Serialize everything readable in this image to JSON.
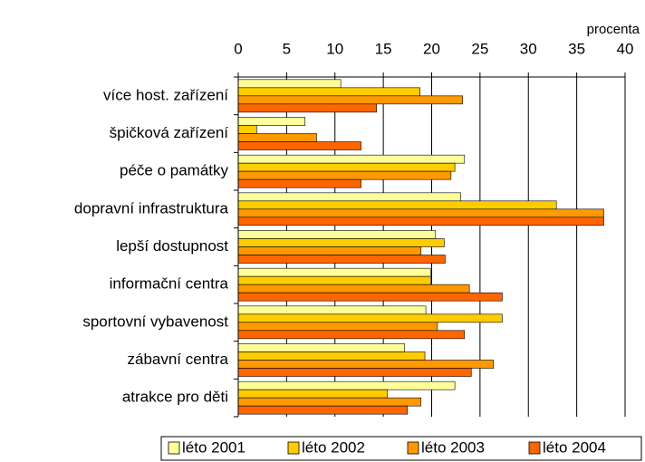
{
  "chart_data": {
    "type": "barh",
    "x_label": "procenta",
    "categories": [
      "více host. zařízení",
      "špičková zařízení",
      "péče o památky",
      "dopravní infrastruktura",
      "lepší dostupnost",
      "informační centra",
      "sportovní vybavenost",
      "zábavní centra",
      "atrakce pro děti"
    ],
    "series": [
      {
        "name": "léto 2001",
        "color": "#ffff99",
        "values": [
          10.6,
          6.9,
          23.4,
          23.0,
          20.4,
          19.9,
          19.4,
          17.2,
          22.4
        ]
      },
      {
        "name": "léto 2002",
        "color": "#ffcc00",
        "values": [
          18.8,
          1.9,
          22.4,
          32.9,
          21.3,
          19.9,
          27.3,
          19.3,
          15.4
        ]
      },
      {
        "name": "léto 2003",
        "color": "#ff9900",
        "values": [
          23.2,
          8.1,
          22.0,
          37.8,
          18.9,
          23.9,
          20.6,
          26.4,
          18.9
        ]
      },
      {
        "name": "léto 2004",
        "color": "#ff6600",
        "values": [
          14.3,
          12.7,
          12.7,
          37.8,
          21.4,
          27.3,
          23.4,
          24.1,
          17.5
        ]
      }
    ],
    "xlim": [
      0,
      40
    ],
    "xticks": [
      0,
      5,
      10,
      15,
      20,
      25,
      30,
      35,
      40
    ],
    "grid": true
  }
}
